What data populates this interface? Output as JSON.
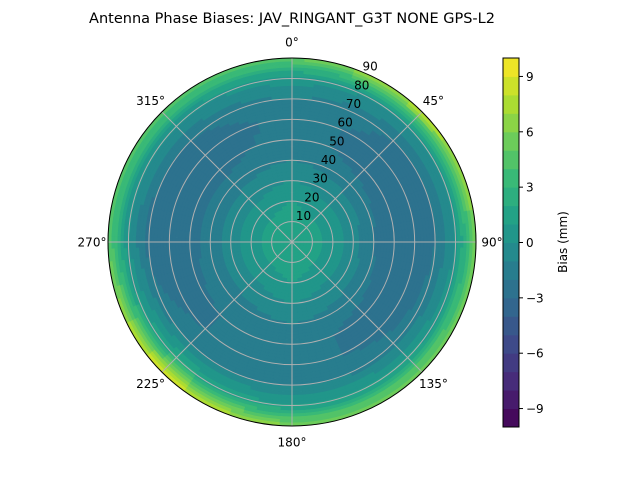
{
  "chart_data": {
    "type": "heatmap",
    "subtype": "polar-contour",
    "title": "Antenna Phase Biases: JAV_RINGANT_G3T NONE GPS-L2",
    "theta_direction": "clockwise",
    "theta_zero": "top",
    "theta_tick_labels": [
      "0°",
      "45°",
      "90°",
      "135°",
      "180°",
      "225°",
      "270°",
      "315°"
    ],
    "radial_ticks": [
      10,
      20,
      30,
      40,
      50,
      60,
      70,
      80,
      90
    ],
    "radial_tick_labels": [
      "10",
      "20",
      "30",
      "40",
      "50",
      "60",
      "70",
      "80",
      "90"
    ],
    "rlim": [
      0,
      90
    ],
    "grid": true,
    "colormap": "viridis",
    "colorbar": {
      "label": "Bias (mm)",
      "range": [
        -10,
        10
      ],
      "levels": 20,
      "ticks": [
        -9,
        -6,
        -3,
        0,
        3,
        6,
        9
      ],
      "tick_labels": [
        "−9",
        "−6",
        "−3",
        "0",
        "3",
        "6",
        "9"
      ]
    },
    "azimuths": [
      0,
      45,
      90,
      135,
      180,
      225,
      270,
      315
    ],
    "zeniths": [
      0,
      10,
      20,
      30,
      40,
      50,
      60,
      70,
      80,
      90
    ],
    "values": [
      [
        2,
        1.5,
        1,
        0,
        -1,
        -1.5,
        -1.5,
        -1,
        0.5,
        5
      ],
      [
        2,
        1.5,
        0.5,
        -0.5,
        -1.5,
        -2.5,
        -2.5,
        -2,
        0,
        8
      ],
      [
        2,
        1.5,
        0.5,
        -0.5,
        -2,
        -3,
        -3,
        -2,
        0,
        6
      ],
      [
        2,
        1.5,
        0.5,
        -0.5,
        -1.5,
        -2.5,
        -2.5,
        -1.5,
        1,
        6
      ],
      [
        2,
        1.5,
        1,
        0,
        -1,
        -1.5,
        -1.5,
        -1,
        1,
        6
      ],
      [
        2,
        1.5,
        0.5,
        -0.5,
        -1.5,
        -2,
        -2,
        -1,
        2,
        9
      ],
      [
        2,
        1.5,
        0.5,
        -0.5,
        -1.5,
        -2.5,
        -3,
        -2.5,
        0,
        5
      ],
      [
        2,
        1.5,
        0.5,
        -0.5,
        -1.5,
        -2.5,
        -3,
        -2,
        0,
        5
      ]
    ]
  }
}
